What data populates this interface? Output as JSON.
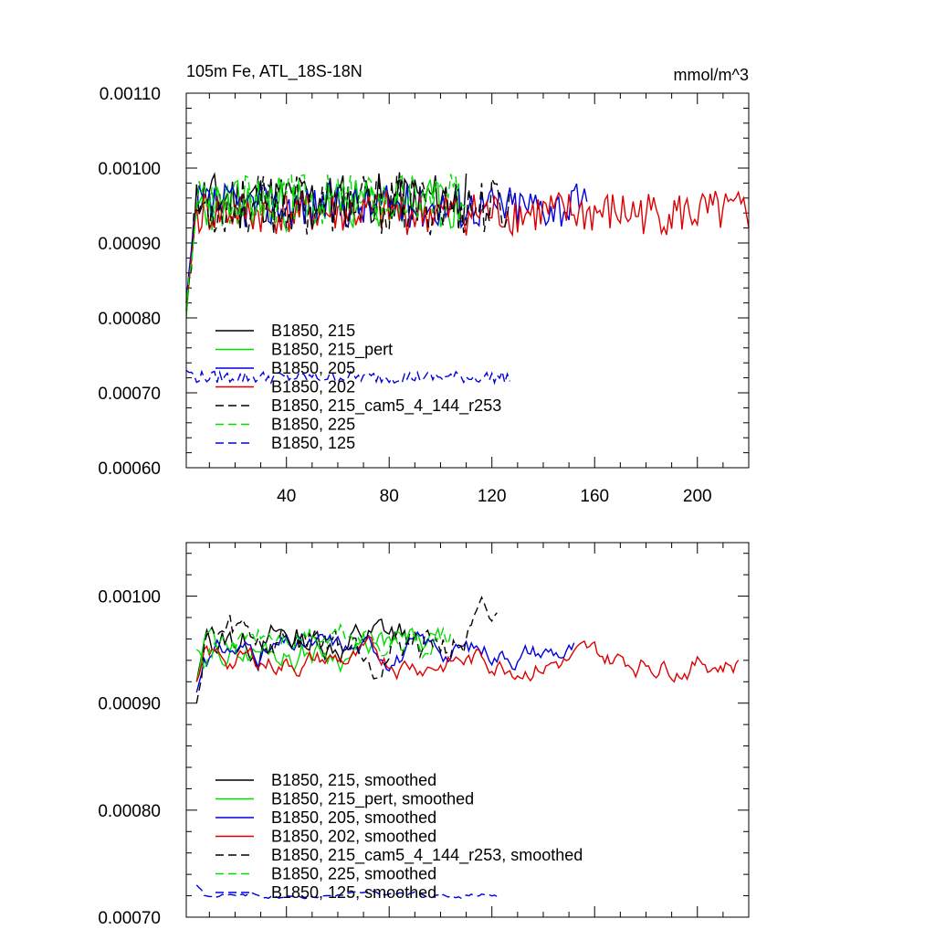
{
  "chart_data": [
    {
      "type": "line",
      "title": "105m Fe, ATL_18S-18N",
      "units": "mmol/m^3",
      "xlim": [
        1,
        220
      ],
      "ylim": [
        0.0006,
        0.0011
      ],
      "x_ticks": [
        40,
        80,
        120,
        160,
        200
      ],
      "x_tick_labels": [
        "40",
        "80",
        "120",
        "160",
        "200"
      ],
      "y_ticks": [
        0.0006,
        0.0007,
        0.0008,
        0.0009,
        0.001,
        0.0011
      ],
      "y_tick_labels": [
        "0.00060",
        "0.00070",
        "0.00080",
        "0.00090",
        "0.00100",
        "0.00110"
      ],
      "legend_position": "bottom-left inside",
      "series": [
        {
          "name": "B1850, 215",
          "color": "#000000",
          "dash": "solid",
          "x_start": 1,
          "x_end": 110,
          "start": 0.00082,
          "base": 0.00096,
          "amplitude": 3.5e-05,
          "seed": 11
        },
        {
          "name": "B1850, 215_pert",
          "color": "#00dd00",
          "dash": "solid",
          "x_start": 1,
          "x_end": 108,
          "start": 0.0008,
          "base": 0.00095,
          "amplitude": 3.5e-05,
          "seed": 23
        },
        {
          "name": "B1850, 205",
          "color": "#0000dd",
          "dash": "solid",
          "x_start": 1,
          "x_end": 157,
          "start": 0.00082,
          "base": 0.00095,
          "amplitude": 3e-05,
          "seed": 37
        },
        {
          "name": "B1850, 202",
          "color": "#dd0000",
          "dash": "solid",
          "x_start": 1,
          "x_end": 220,
          "start": 0.00082,
          "base": 0.00094,
          "amplitude": 3e-05,
          "seed": 41
        },
        {
          "name": "B1850, 215_cam5_4_144_r253",
          "color": "#000000",
          "dash": "dashed",
          "x_start": 1,
          "x_end": 127,
          "start": 0.00081,
          "base": 0.00095,
          "amplitude": 4e-05,
          "seed": 53
        },
        {
          "name": "B1850, 225",
          "color": "#00dd00",
          "dash": "dashed",
          "x_start": 1,
          "x_end": 110,
          "start": 0.00081,
          "base": 0.00096,
          "amplitude": 3.5e-05,
          "seed": 67
        },
        {
          "name": "B1850, 125",
          "color": "#0000dd",
          "dash": "dashed",
          "x_start": 1,
          "x_end": 127,
          "start": 0.00073,
          "base": 0.000721,
          "amplitude": 8e-06,
          "seed": 79
        }
      ]
    },
    {
      "type": "line",
      "title": "",
      "xlim": [
        1,
        220
      ],
      "ylim": [
        0.0007,
        0.00105
      ],
      "x_ticks": [
        40,
        80,
        120,
        160,
        200
      ],
      "y_ticks": [
        0.0007,
        0.0008,
        0.0009,
        0.001
      ],
      "y_tick_labels": [
        "0.00070",
        "0.00080",
        "0.00090",
        "0.00100"
      ],
      "legend_position": "bottom-left inside",
      "series": [
        {
          "name": "B1850, 215, smoothed",
          "color": "#000000",
          "dash": "solid",
          "x_start": 5,
          "x_end": 88,
          "start": 0.00092,
          "base": 0.00096,
          "amplitude": 3e-05,
          "seed": 13
        },
        {
          "name": "B1850, 215_pert, smoothed",
          "color": "#00dd00",
          "dash": "solid",
          "x_start": 5,
          "x_end": 100,
          "start": 0.00092,
          "base": 0.00095,
          "amplitude": 2.5e-05,
          "seed": 29
        },
        {
          "name": "B1850, 205, smoothed",
          "color": "#0000dd",
          "dash": "solid",
          "x_start": 5,
          "x_end": 152,
          "start": 0.00091,
          "base": 0.00095,
          "amplitude": 2e-05,
          "seed": 31
        },
        {
          "name": "B1850, 202, smoothed",
          "color": "#dd0000",
          "dash": "solid",
          "x_start": 5,
          "x_end": 216,
          "start": 0.00092,
          "base": 0.00094,
          "amplitude": 2e-05,
          "seed": 43
        },
        {
          "name": "B1850, 215_cam5_4_144_r253, smoothed",
          "color": "#000000",
          "dash": "dashed",
          "x_start": 5,
          "x_end": 122,
          "start": 0.0009,
          "base": 0.00096,
          "amplitude": 3.5e-05,
          "seed": 59
        },
        {
          "name": "B1850, 225, smoothed",
          "color": "#00dd00",
          "dash": "dashed",
          "x_start": 5,
          "x_end": 105,
          "start": 0.00095,
          "base": 0.00096,
          "amplitude": 2.5e-05,
          "seed": 71
        },
        {
          "name": "B1850, 125, smoothed",
          "color": "#0000dd",
          "dash": "dashed",
          "x_start": 5,
          "x_end": 122,
          "start": 0.00073,
          "base": 0.000721,
          "amplitude": 4e-06,
          "seed": 83
        }
      ]
    }
  ]
}
